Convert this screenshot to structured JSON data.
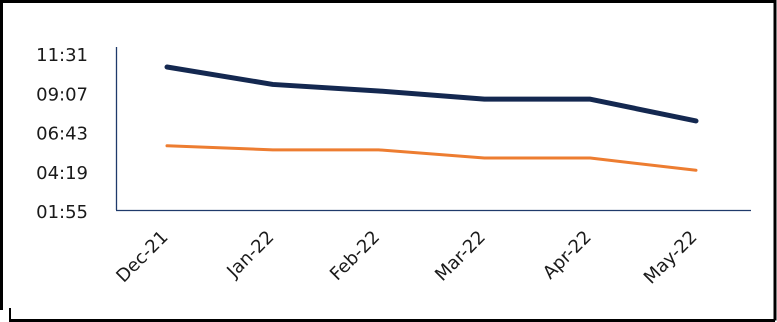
{
  "chart_data": {
    "type": "line",
    "title": "",
    "xlabel": "",
    "ylabel": "",
    "categories": [
      "Dec-21",
      "Jan-22",
      "Feb-22",
      "Mar-22",
      "Apr-22",
      "May-22"
    ],
    "y_ticks": [
      "01:55",
      "04:19",
      "06:43",
      "09:07",
      "11:31"
    ],
    "y_tick_values": [
      115,
      259,
      403,
      547,
      691
    ],
    "ylim": [
      115,
      691
    ],
    "grid": false,
    "legend": "none",
    "series": [
      {
        "values_label": [
          "10:47",
          "09:43",
          "09:19",
          "08:49",
          "08:49",
          "07:29"
        ],
        "values": [
          647,
          583,
          559,
          529,
          529,
          449
        ],
        "color": "#142850"
      },
      {
        "values_label": [
          "05:58",
          "05:43",
          "05:43",
          "05:13",
          "05:13",
          "04:28"
        ],
        "values": [
          358,
          343,
          343,
          313,
          313,
          268
        ],
        "color": "#ED7D31"
      }
    ]
  }
}
